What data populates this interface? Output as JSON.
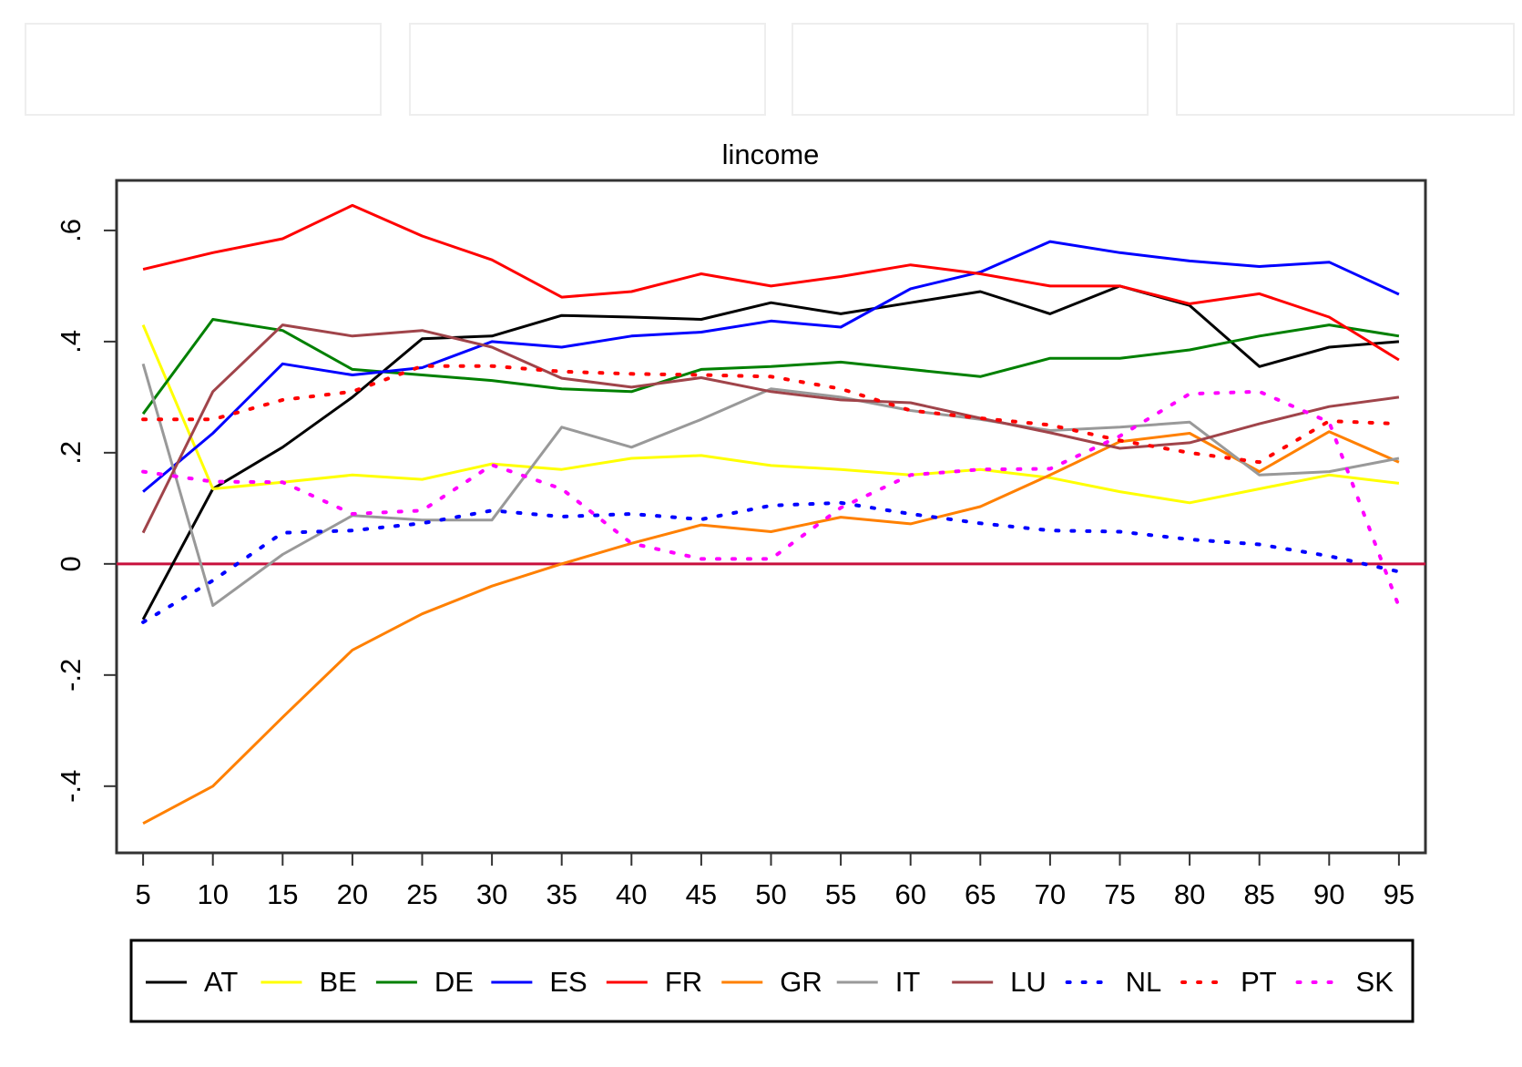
{
  "chart_data": {
    "type": "line",
    "title": "lincome",
    "x": [
      5,
      10,
      15,
      20,
      25,
      30,
      35,
      40,
      45,
      50,
      55,
      60,
      65,
      70,
      75,
      80,
      85,
      90,
      95
    ],
    "xlim": [
      3.1,
      96.9
    ],
    "xticks": [
      5,
      10,
      15,
      20,
      25,
      30,
      35,
      40,
      45,
      50,
      55,
      60,
      65,
      70,
      75,
      80,
      85,
      90,
      95
    ],
    "ylim": [
      -0.52,
      0.69
    ],
    "yticks": [
      {
        "value": -0.4,
        "label": "-.4"
      },
      {
        "value": -0.2,
        "label": "-.2"
      },
      0,
      {
        "value": 0.2,
        "label": ".2"
      },
      {
        "value": 0.4,
        "label": ".4"
      },
      {
        "value": 0.6,
        "label": ".6"
      }
    ],
    "reference_line": {
      "value": 0,
      "color": "#c8103c"
    },
    "legend": "bottom",
    "series": [
      {
        "name": "AT",
        "color": "#000000",
        "style": "solid",
        "values": [
          -0.1,
          0.135,
          0.21,
          0.3,
          0.405,
          0.41,
          0.447,
          0.444,
          0.44,
          0.47,
          0.45,
          0.47,
          0.49,
          0.45,
          0.5,
          0.465,
          0.355,
          0.39,
          0.4
        ]
      },
      {
        "name": "BE",
        "color": "#ffff00",
        "style": "solid",
        "values": [
          0.43,
          0.135,
          0.147,
          0.16,
          0.152,
          0.18,
          0.17,
          0.19,
          0.195,
          0.177,
          0.17,
          0.16,
          0.17,
          0.155,
          0.13,
          0.11,
          0.135,
          0.16,
          0.145
        ]
      },
      {
        "name": "DE",
        "color": "#008000",
        "style": "solid",
        "values": [
          0.27,
          0.44,
          0.42,
          0.35,
          0.34,
          0.33,
          0.315,
          0.31,
          0.35,
          0.355,
          0.363,
          0.35,
          0.337,
          0.37,
          0.37,
          0.385,
          0.41,
          0.43,
          0.41
        ]
      },
      {
        "name": "ES",
        "color": "#0000ff",
        "style": "solid",
        "values": [
          0.13,
          0.235,
          0.36,
          0.34,
          0.353,
          0.4,
          0.39,
          0.41,
          0.417,
          0.437,
          0.426,
          0.495,
          0.525,
          0.58,
          0.56,
          0.545,
          0.535,
          0.543,
          0.485
        ]
      },
      {
        "name": "FR",
        "color": "#ff0000",
        "style": "solid",
        "values": [
          0.53,
          0.56,
          0.585,
          0.645,
          0.59,
          0.547,
          0.48,
          0.49,
          0.522,
          0.5,
          0.517,
          0.538,
          0.522,
          0.5,
          0.5,
          0.468,
          0.486,
          0.444,
          0.367
        ]
      },
      {
        "name": "GR",
        "color": "#ff8000",
        "style": "solid",
        "values": [
          -0.467,
          -0.4,
          -0.276,
          -0.155,
          -0.09,
          -0.04,
          0.0,
          0.037,
          0.07,
          0.058,
          0.084,
          0.072,
          0.103,
          0.16,
          0.22,
          0.235,
          0.166,
          0.238,
          0.183
        ]
      },
      {
        "name": "IT",
        "color": "#999999",
        "style": "solid",
        "values": [
          0.36,
          -0.075,
          0.017,
          0.087,
          0.079,
          0.079,
          0.246,
          0.21,
          0.26,
          0.315,
          0.3,
          0.276,
          0.26,
          0.24,
          0.246,
          0.255,
          0.16,
          0.166,
          0.19
        ]
      },
      {
        "name": "LU",
        "color": "#a0444a",
        "style": "solid",
        "values": [
          0.056,
          0.31,
          0.43,
          0.41,
          0.42,
          0.39,
          0.334,
          0.318,
          0.335,
          0.31,
          0.295,
          0.29,
          0.262,
          0.236,
          0.208,
          0.218,
          0.252,
          0.283,
          0.3
        ]
      },
      {
        "name": "NL",
        "color": "#0000ff",
        "style": "dotted",
        "values": [
          -0.105,
          -0.03,
          0.056,
          0.06,
          0.073,
          0.096,
          0.085,
          0.09,
          0.08,
          0.105,
          0.11,
          0.09,
          0.073,
          0.06,
          0.058,
          0.044,
          0.035,
          0.014,
          -0.014
        ]
      },
      {
        "name": "PT",
        "color": "#ff0000",
        "style": "dotted",
        "values": [
          0.26,
          0.26,
          0.295,
          0.31,
          0.356,
          0.356,
          0.346,
          0.342,
          0.34,
          0.337,
          0.315,
          0.276,
          0.262,
          0.25,
          0.222,
          0.2,
          0.183,
          0.257,
          0.252
        ]
      },
      {
        "name": "SK",
        "color": "#ff00ff",
        "style": "dotted",
        "values": [
          0.166,
          0.148,
          0.147,
          0.09,
          0.096,
          0.178,
          0.135,
          0.037,
          0.009,
          0.009,
          0.101,
          0.16,
          0.17,
          0.171,
          0.23,
          0.306,
          0.31,
          0.255,
          -0.077
        ]
      }
    ]
  }
}
